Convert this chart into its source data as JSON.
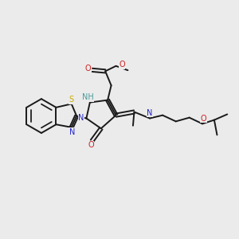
{
  "bg_color": "#ebebeb",
  "bond_color": "#1a1a1a",
  "bond_width": 1.4,
  "N_color": "#2222cc",
  "O_color": "#cc2222",
  "S_color": "#ccaa00",
  "H_color": "#4a9a9a",
  "font_size": 7.0,
  "figsize": [
    3.0,
    3.0
  ],
  "dpi": 100,
  "xlim": [
    0,
    10
  ],
  "ylim": [
    0,
    10
  ]
}
